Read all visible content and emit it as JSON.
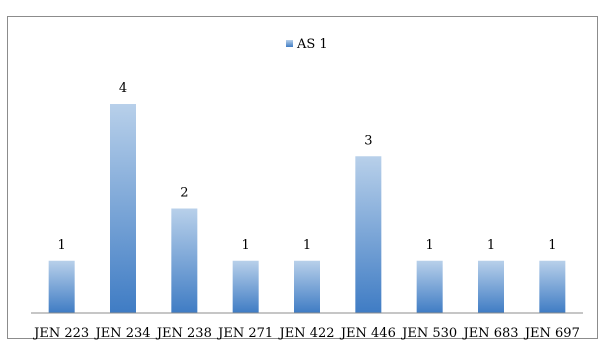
{
  "chart_data": {
    "type": "bar",
    "categories": [
      "JEN 223",
      "JEN 234",
      "JEN 238",
      "JEN 271",
      "JEN 422",
      "JEN 446",
      "JEN 530",
      "JEN 683",
      "JEN 697"
    ],
    "series": [
      {
        "name": "AS 1",
        "values": [
          1,
          4,
          2,
          1,
          1,
          3,
          1,
          1,
          1
        ]
      }
    ],
    "data_labels": [
      "1",
      "4",
      "2",
      "1",
      "1",
      "3",
      "1",
      "1",
      "1"
    ],
    "ylim": [
      0,
      4
    ],
    "grid": false,
    "legend_position": "top-center",
    "bar_color_top": "#b8d0ea",
    "bar_color_bottom": "#3f7cc4"
  }
}
